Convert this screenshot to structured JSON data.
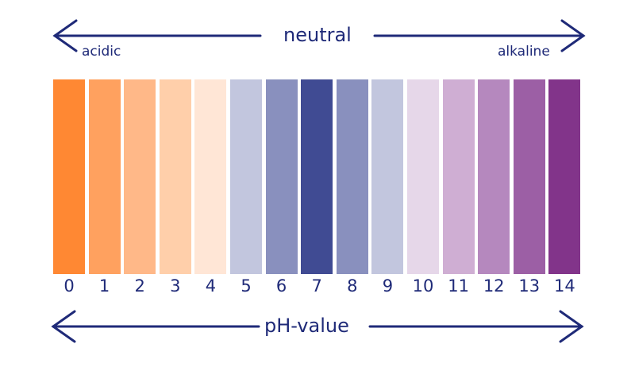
{
  "top": {
    "center_label": "neutral",
    "left_label": "acidic",
    "right_label": "alkaline"
  },
  "bottom": {
    "center_label": "pH-value"
  },
  "text_color": "#1f2a78",
  "scale": [
    {
      "value": "0",
      "color": "#ff8833"
    },
    {
      "value": "1",
      "color": "#ffa15f"
    },
    {
      "value": "2",
      "color": "#ffb888"
    },
    {
      "value": "3",
      "color": "#ffcfaa"
    },
    {
      "value": "4",
      "color": "#ffe6d6"
    },
    {
      "value": "5",
      "color": "#c2c6de"
    },
    {
      "value": "6",
      "color": "#8990be"
    },
    {
      "value": "7",
      "color": "#404b93"
    },
    {
      "value": "8",
      "color": "#8990be"
    },
    {
      "value": "9",
      "color": "#c2c6de"
    },
    {
      "value": "10",
      "color": "#e6d7e9"
    },
    {
      "value": "11",
      "color": "#cfaed3"
    },
    {
      "value": "12",
      "color": "#b588be"
    },
    {
      "value": "13",
      "color": "#9c5fa5"
    },
    {
      "value": "14",
      "color": "#82348a"
    }
  ]
}
